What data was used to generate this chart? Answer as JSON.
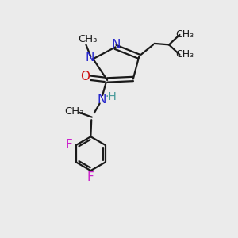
{
  "bg_color": "#ebebeb",
  "bond_color": "#1a1a1a",
  "n_color": "#2222cc",
  "o_color": "#cc1111",
  "f_color": "#cc22cc",
  "h_color": "#449999",
  "font_size": 10,
  "fig_size": [
    3.0,
    3.0
  ],
  "dpi": 100,
  "lw": 1.6,
  "xlim": [
    0,
    10
  ],
  "ylim": [
    0,
    10
  ]
}
